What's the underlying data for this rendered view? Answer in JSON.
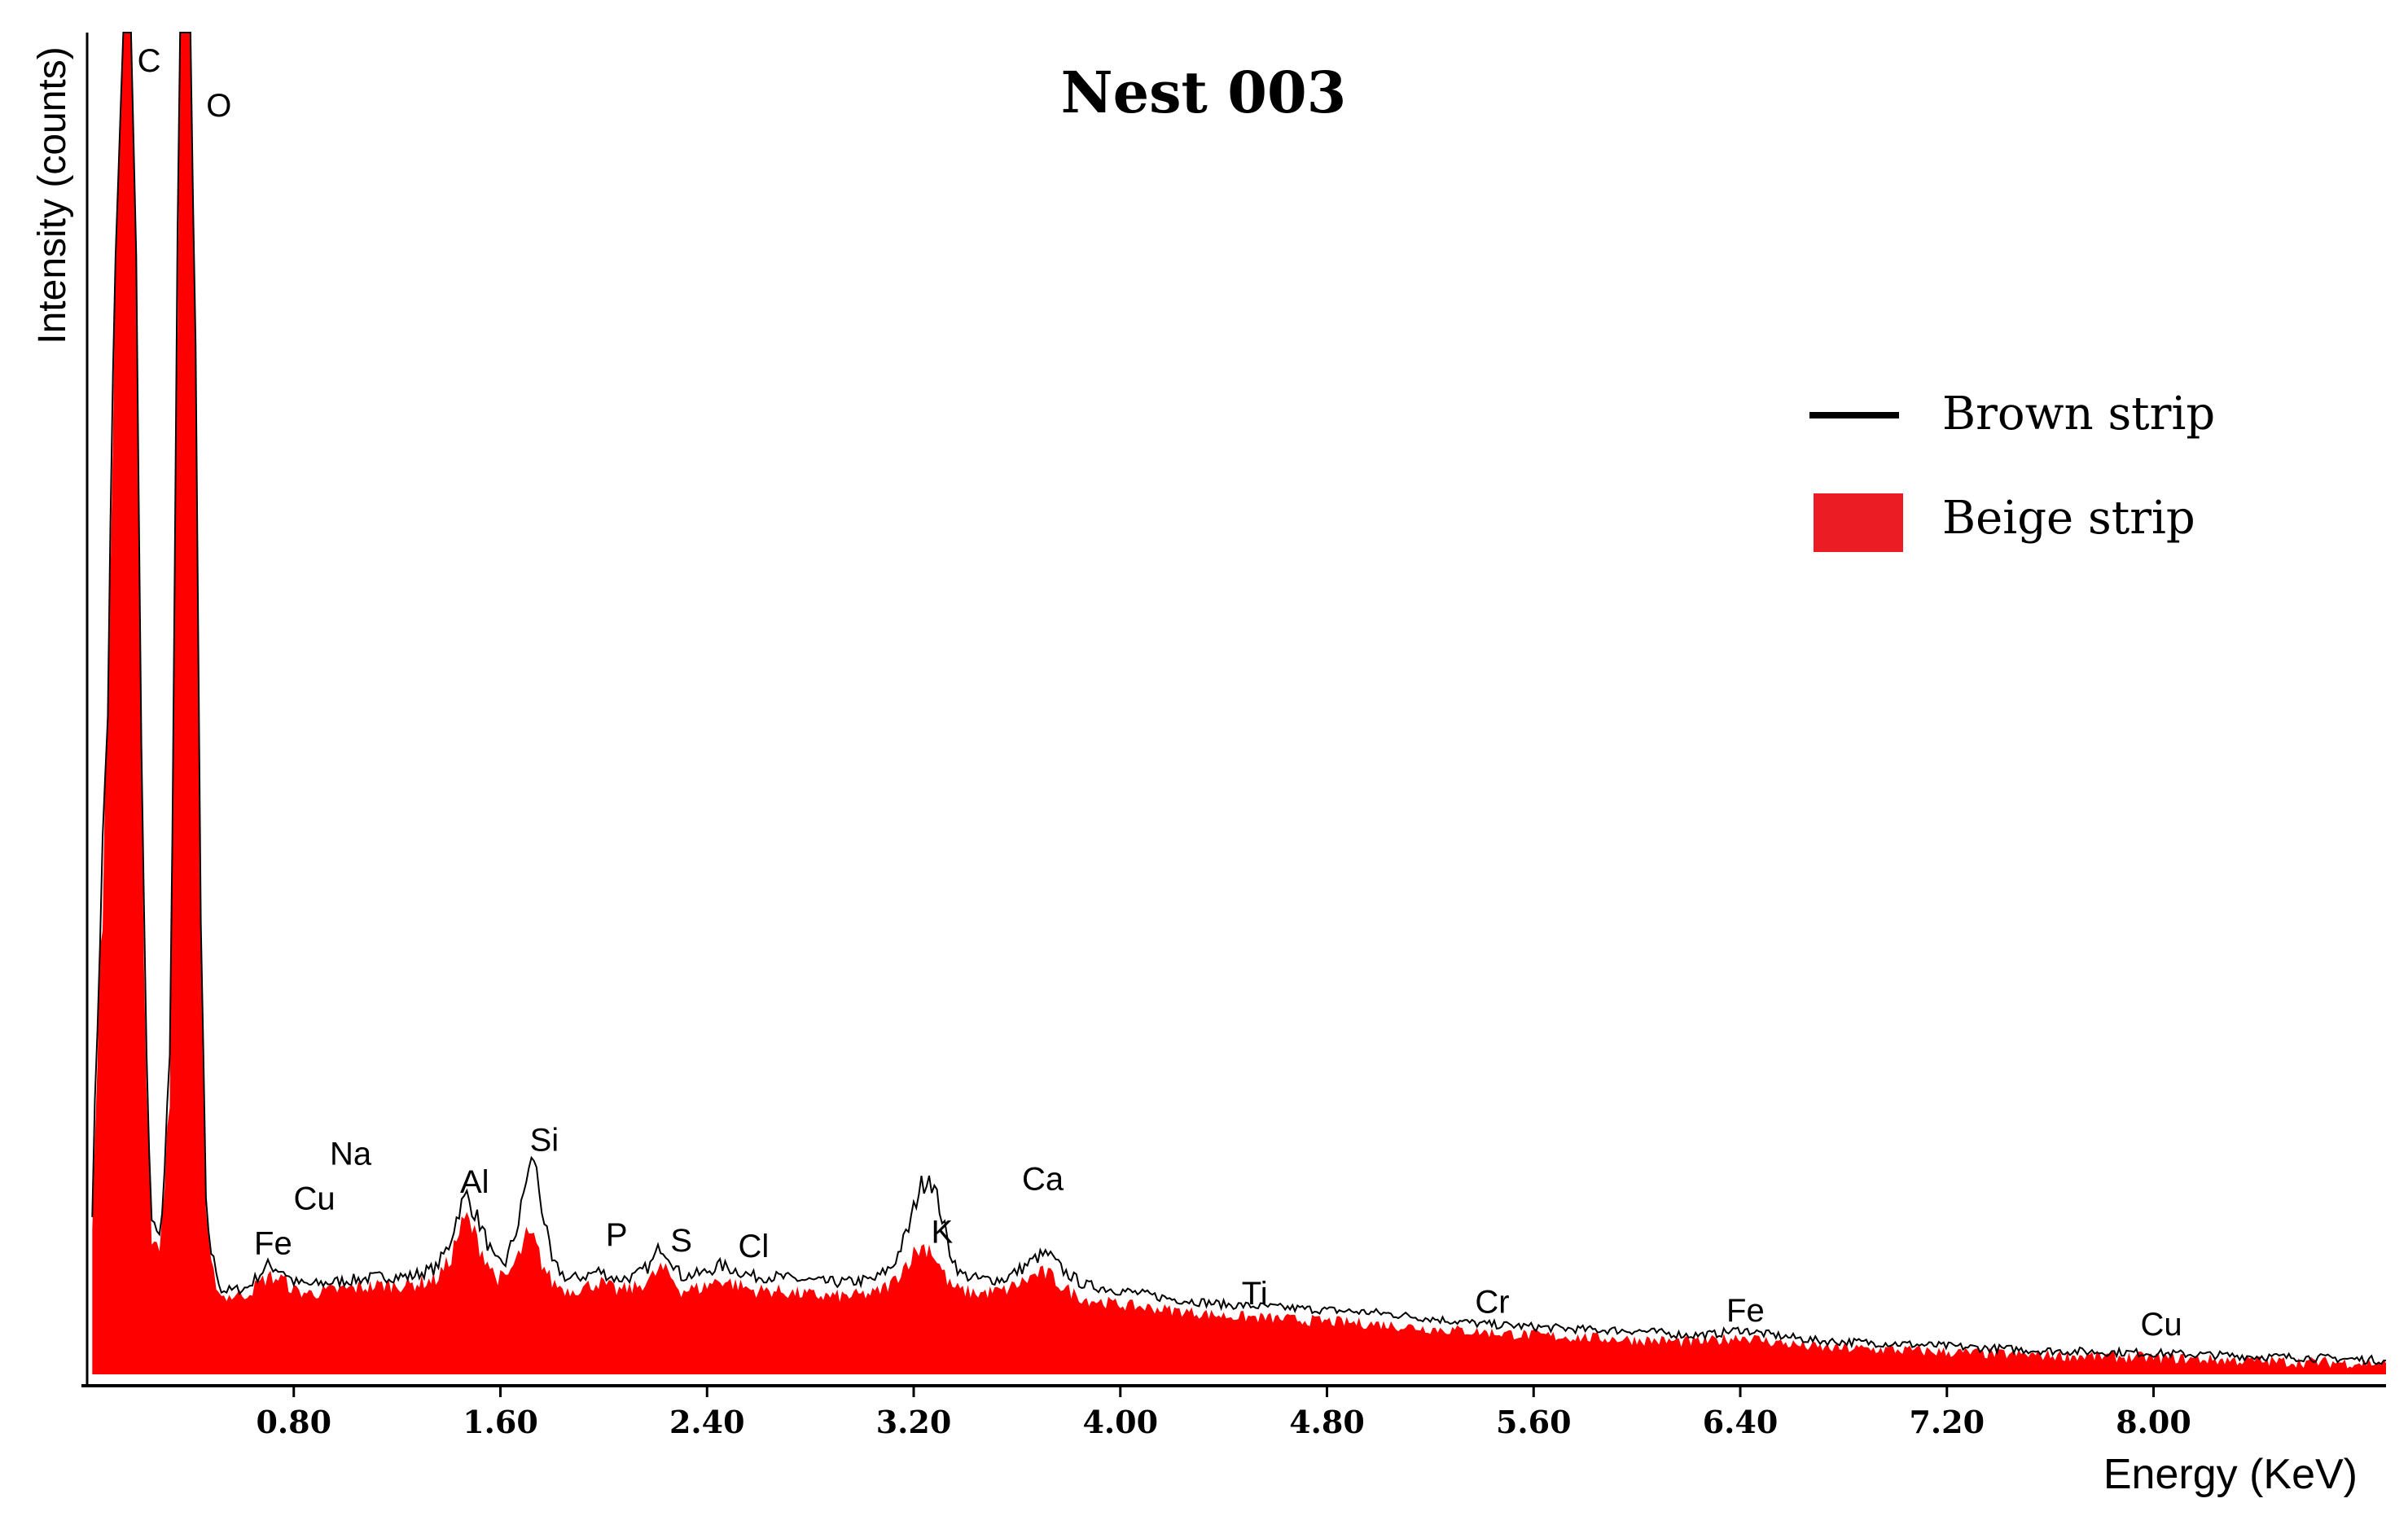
{
  "chart_data": {
    "type": "area",
    "title": "Nest 003",
    "xlabel": "Energy (KeV)",
    "ylabel": "Intensity (counts)",
    "xlim": [
      0.0,
      8.9
    ],
    "ylim": [
      0,
      2400
    ],
    "x_ticks": [
      "0.80",
      "1.60",
      "2.40",
      "3.20",
      "4.00",
      "4.80",
      "5.60",
      "6.40",
      "7.20",
      "8.00"
    ],
    "x_tick_values": [
      0.8,
      1.6,
      2.4,
      3.2,
      4.0,
      4.8,
      5.6,
      6.4,
      7.2,
      8.0
    ],
    "legend_position": "top-right",
    "series": [
      {
        "name": "Brown strip",
        "style": "line",
        "color": "#000000",
        "x": [
          0.02,
          0.05,
          0.08,
          0.11,
          0.14,
          0.17,
          0.19,
          0.21,
          0.23,
          0.25,
          0.27,
          0.29,
          0.32,
          0.36,
          0.38,
          0.4,
          0.42,
          0.44,
          0.46,
          0.48,
          0.52,
          0.56,
          0.62,
          0.7,
          0.76,
          0.8,
          0.86,
          0.95,
          1.05,
          1.15,
          1.25,
          1.35,
          1.4,
          1.44,
          1.47,
          1.52,
          1.58,
          1.62,
          1.67,
          1.7,
          1.73,
          1.76,
          1.8,
          1.86,
          1.92,
          1.98,
          2.05,
          2.12,
          2.18,
          2.22,
          2.25,
          2.3,
          2.38,
          2.45,
          2.52,
          2.58,
          2.65,
          2.75,
          2.85,
          2.95,
          3.05,
          3.12,
          3.18,
          3.22,
          3.26,
          3.3,
          3.34,
          3.38,
          3.45,
          3.55,
          3.62,
          3.68,
          3.72,
          3.78,
          3.86,
          4.0,
          4.2,
          4.4,
          4.6,
          4.8,
          5.0,
          5.2,
          5.4,
          5.6,
          5.8,
          6.0,
          6.2,
          6.3,
          6.4,
          6.5,
          6.7,
          7.0,
          7.3,
          7.6,
          7.8,
          8.0,
          8.2,
          8.4,
          8.6,
          8.9
        ],
        "values": [
          300,
          800,
          1200,
          2000,
          2400,
          2400,
          2000,
          1100,
          550,
          280,
          250,
          280,
          550,
          2400,
          2400,
          2400,
          1800,
          800,
          300,
          220,
          150,
          150,
          155,
          195,
          185,
          165,
          160,
          165,
          170,
          175,
          175,
          190,
          230,
          295,
          320,
          270,
          200,
          200,
          270,
          350,
          390,
          300,
          200,
          170,
          175,
          185,
          170,
          175,
          195,
          230,
          215,
          175,
          180,
          195,
          185,
          175,
          175,
          170,
          165,
          165,
          170,
          195,
          260,
          330,
          360,
          300,
          220,
          180,
          170,
          170,
          190,
          210,
          215,
          185,
          160,
          150,
          135,
          125,
          120,
          115,
          110,
          100,
          90,
          85,
          80,
          78,
          70,
          72,
          80,
          72,
          60,
          55,
          48,
          42,
          40,
          38,
          35,
          32,
          30,
          25
        ]
      },
      {
        "name": "Beige strip",
        "style": "area",
        "color": "#ff0000",
        "x": [
          0.02,
          0.05,
          0.08,
          0.11,
          0.14,
          0.17,
          0.19,
          0.21,
          0.23,
          0.25,
          0.27,
          0.29,
          0.32,
          0.36,
          0.38,
          0.4,
          0.42,
          0.44,
          0.46,
          0.48,
          0.52,
          0.56,
          0.62,
          0.7,
          0.76,
          0.8,
          0.86,
          0.95,
          1.05,
          1.15,
          1.25,
          1.35,
          1.4,
          1.44,
          1.47,
          1.52,
          1.58,
          1.62,
          1.67,
          1.7,
          1.73,
          1.76,
          1.8,
          1.86,
          1.92,
          1.98,
          2.05,
          2.12,
          2.18,
          2.22,
          2.25,
          2.3,
          2.38,
          2.45,
          2.52,
          2.58,
          2.65,
          2.75,
          2.85,
          2.95,
          3.05,
          3.12,
          3.18,
          3.22,
          3.26,
          3.3,
          3.34,
          3.38,
          3.45,
          3.55,
          3.62,
          3.68,
          3.72,
          3.78,
          3.86,
          4.0,
          4.2,
          4.4,
          4.6,
          4.8,
          5.0,
          5.2,
          5.4,
          5.6,
          5.8,
          6.0,
          6.2,
          6.3,
          6.4,
          6.5,
          6.7,
          7.0,
          7.3,
          7.6,
          7.8,
          8.0,
          8.2,
          8.4,
          8.6,
          8.9
        ],
        "values": [
          250,
          720,
          1150,
          2000,
          2400,
          2400,
          2000,
          1050,
          520,
          250,
          220,
          260,
          520,
          2400,
          2400,
          2400,
          1750,
          750,
          270,
          190,
          140,
          140,
          145,
          175,
          170,
          150,
          145,
          150,
          155,
          160,
          160,
          170,
          200,
          255,
          280,
          230,
          175,
          170,
          210,
          245,
          240,
          200,
          165,
          150,
          155,
          165,
          150,
          155,
          170,
          190,
          180,
          150,
          155,
          170,
          160,
          150,
          150,
          145,
          140,
          140,
          145,
          165,
          205,
          225,
          230,
          195,
          160,
          150,
          145,
          150,
          165,
          180,
          180,
          155,
          135,
          125,
          115,
          105,
          100,
          95,
          90,
          82,
          76,
          70,
          66,
          62,
          58,
          60,
          68,
          60,
          48,
          44,
          38,
          34,
          32,
          30,
          27,
          24,
          22,
          20
        ]
      }
    ],
    "peak_labels": [
      {
        "text": "C",
        "x": 0.24,
        "y": 2330
      },
      {
        "text": "O",
        "x": 0.51,
        "y": 2250
      },
      {
        "text": "Na",
        "x": 1.02,
        "y": 375
      },
      {
        "text": "Cu",
        "x": 0.88,
        "y": 295
      },
      {
        "text": "Fe",
        "x": 0.72,
        "y": 215
      },
      {
        "text": "Al",
        "x": 1.5,
        "y": 325
      },
      {
        "text": "Si",
        "x": 1.77,
        "y": 400
      },
      {
        "text": "P",
        "x": 2.05,
        "y": 230
      },
      {
        "text": "S",
        "x": 2.3,
        "y": 220
      },
      {
        "text": "Cl",
        "x": 2.58,
        "y": 210
      },
      {
        "text": "K",
        "x": 3.31,
        "y": 235
      },
      {
        "text": "Ca",
        "x": 3.7,
        "y": 330
      },
      {
        "text": "Ti",
        "x": 4.52,
        "y": 125
      },
      {
        "text": "Cr",
        "x": 5.44,
        "y": 110
      },
      {
        "text": "Fe",
        "x": 6.42,
        "y": 95
      },
      {
        "text": "Cu",
        "x": 8.03,
        "y": 70
      }
    ]
  }
}
